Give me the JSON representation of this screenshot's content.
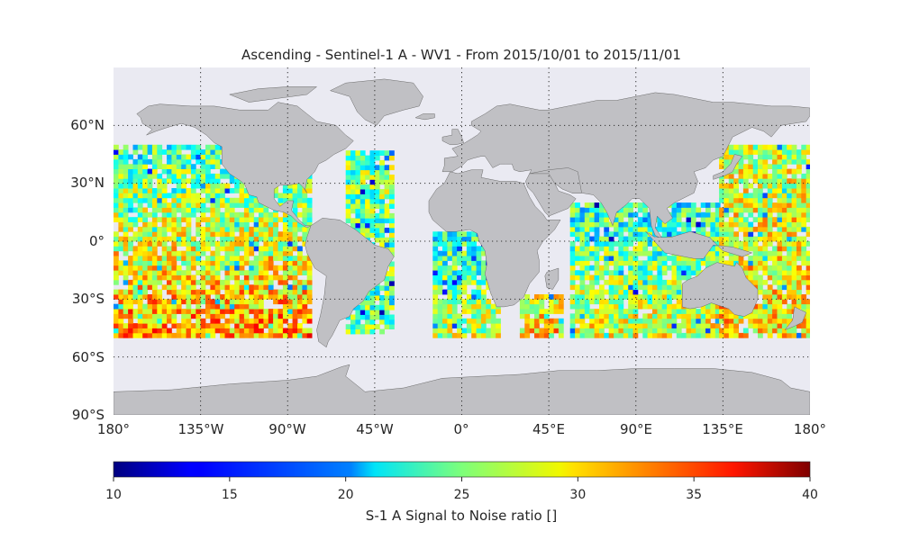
{
  "chart_data": {
    "type": "heatmap",
    "title": "Ascending - Sentinel-1 A - WV1 - From 2015/10/01 to 2015/11/01",
    "projection": "plate-carree",
    "lat_ticks": [
      "60°N",
      "30°N",
      "0°",
      "30°S",
      "60°S",
      "90°S"
    ],
    "lon_ticks": [
      "180°",
      "135°W",
      "90°W",
      "45°W",
      "0°",
      "45°E",
      "90°E",
      "135°E",
      "180°"
    ],
    "grid": true,
    "colormap": "jet",
    "colors": {
      "ocean": "#eaeaf2",
      "land": "#c0c0c4",
      "coast": "#6a6a6a",
      "gridline": "#333333"
    },
    "colorbar": {
      "label": "S-1 A Signal to Noise ratio []",
      "min": 10,
      "max": 40,
      "ticks": [
        "10",
        "15",
        "20",
        "25",
        "30",
        "35",
        "40"
      ]
    },
    "data_extent": {
      "lat": [
        -50,
        50
      ],
      "lon": [
        -180,
        180
      ]
    },
    "swaths": [
      {
        "lon_range": [
          -180,
          -78
        ],
        "lat_range": [
          -50,
          50
        ],
        "snr_north": 23,
        "snr_south": 32
      },
      {
        "lon_range": [
          -60,
          -36
        ],
        "lat_range": [
          -48,
          46
        ],
        "snr_north": 25,
        "snr_south": 24
      },
      {
        "lon_range": [
          -15,
          20
        ],
        "lat_range": [
          -50,
          3
        ],
        "snr_north": 22,
        "snr_south": 27
      },
      {
        "lon_range": [
          30,
          52
        ],
        "lat_range": [
          -50,
          -28
        ],
        "snr_north": 28,
        "snr_south": 30
      },
      {
        "lon_range": [
          56,
          133
        ],
        "lat_range": [
          -50,
          20
        ],
        "snr_north": 22,
        "snr_south": 28
      },
      {
        "lon_range": [
          133,
          180
        ],
        "lat_range": [
          -50,
          50
        ],
        "snr_north": 27,
        "snr_south": 30
      }
    ]
  }
}
